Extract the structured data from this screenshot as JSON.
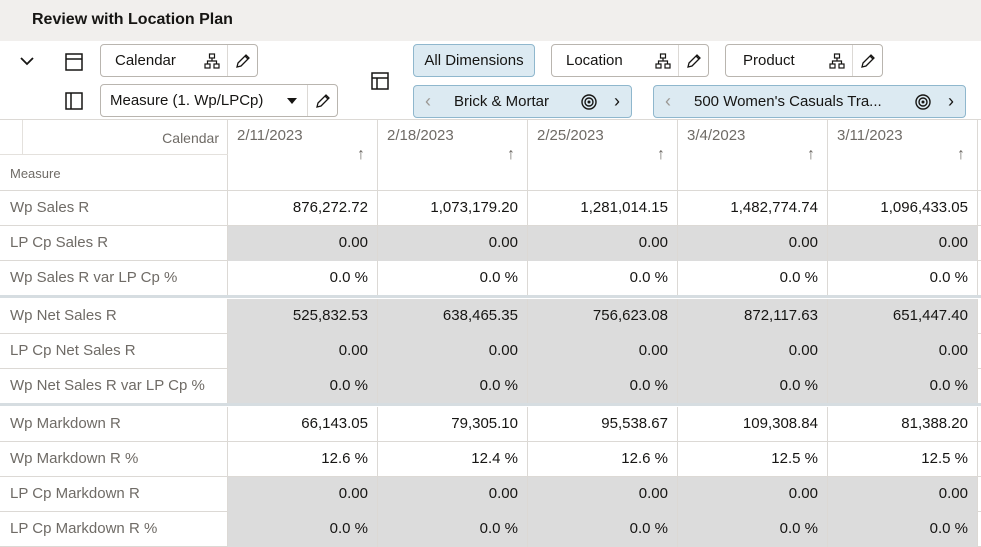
{
  "page": {
    "title": "Review with Location Plan"
  },
  "toolbar": {
    "calendar_label": "Calendar",
    "measure_value": "Measure (1. Wp/LPCp)",
    "all_dimensions_label": "All Dimensions",
    "location_label": "Location",
    "product_label": "Product",
    "location_value": "Brick & Mortar",
    "product_value": "500 Women's Casuals Tra..."
  },
  "grid": {
    "corner_calendar": "Calendar",
    "corner_measure": "Measure",
    "columns": [
      "2/11/2023",
      "2/18/2023",
      "2/25/2023",
      "3/4/2023",
      "3/11/2023"
    ],
    "sort_indicator": "↑",
    "rows": [
      {
        "label": "Wp Sales R",
        "values": [
          "876,272.72",
          "1,073,179.20",
          "1,281,014.15",
          "1,482,774.74",
          "1,096,433.05"
        ],
        "readonly": false
      },
      {
        "label": "LP Cp Sales R",
        "values": [
          "0.00",
          "0.00",
          "0.00",
          "0.00",
          "0.00"
        ],
        "readonly": true
      },
      {
        "label": "Wp Sales R var LP Cp %",
        "values": [
          "0.0 %",
          "0.0 %",
          "0.0 %",
          "0.0 %",
          "0.0 %"
        ],
        "readonly": false
      },
      {
        "label": "Wp Net Sales R",
        "values": [
          "525,832.53",
          "638,465.35",
          "756,623.08",
          "872,117.63",
          "651,447.40"
        ],
        "readonly": true
      },
      {
        "label": "LP Cp Net Sales R",
        "values": [
          "0.00",
          "0.00",
          "0.00",
          "0.00",
          "0.00"
        ],
        "readonly": true
      },
      {
        "label": "Wp Net Sales R var LP Cp %",
        "values": [
          "0.0 %",
          "0.0 %",
          "0.0 %",
          "0.0 %",
          "0.0 %"
        ],
        "readonly": true
      },
      {
        "label": "Wp Markdown R",
        "values": [
          "66,143.05",
          "79,305.10",
          "95,538.67",
          "109,308.84",
          "81,388.20"
        ],
        "readonly": false
      },
      {
        "label": "Wp Markdown R %",
        "values": [
          "12.6 %",
          "12.4 %",
          "12.6 %",
          "12.5 %",
          "12.5 %"
        ],
        "readonly": false
      },
      {
        "label": "LP Cp Markdown R",
        "values": [
          "0.00",
          "0.00",
          "0.00",
          "0.00",
          "0.00"
        ],
        "readonly": true
      },
      {
        "label": "LP Cp Markdown R %",
        "values": [
          "0.0 %",
          "0.0 %",
          "0.0 %",
          "0.0 %",
          "0.0 %"
        ],
        "readonly": true
      }
    ]
  },
  "colors": {
    "readonly_cell": "#dcdcdc",
    "active_button": "#dceaf2",
    "header_band": "#f1efed",
    "group_separator": "#d6dde1"
  }
}
